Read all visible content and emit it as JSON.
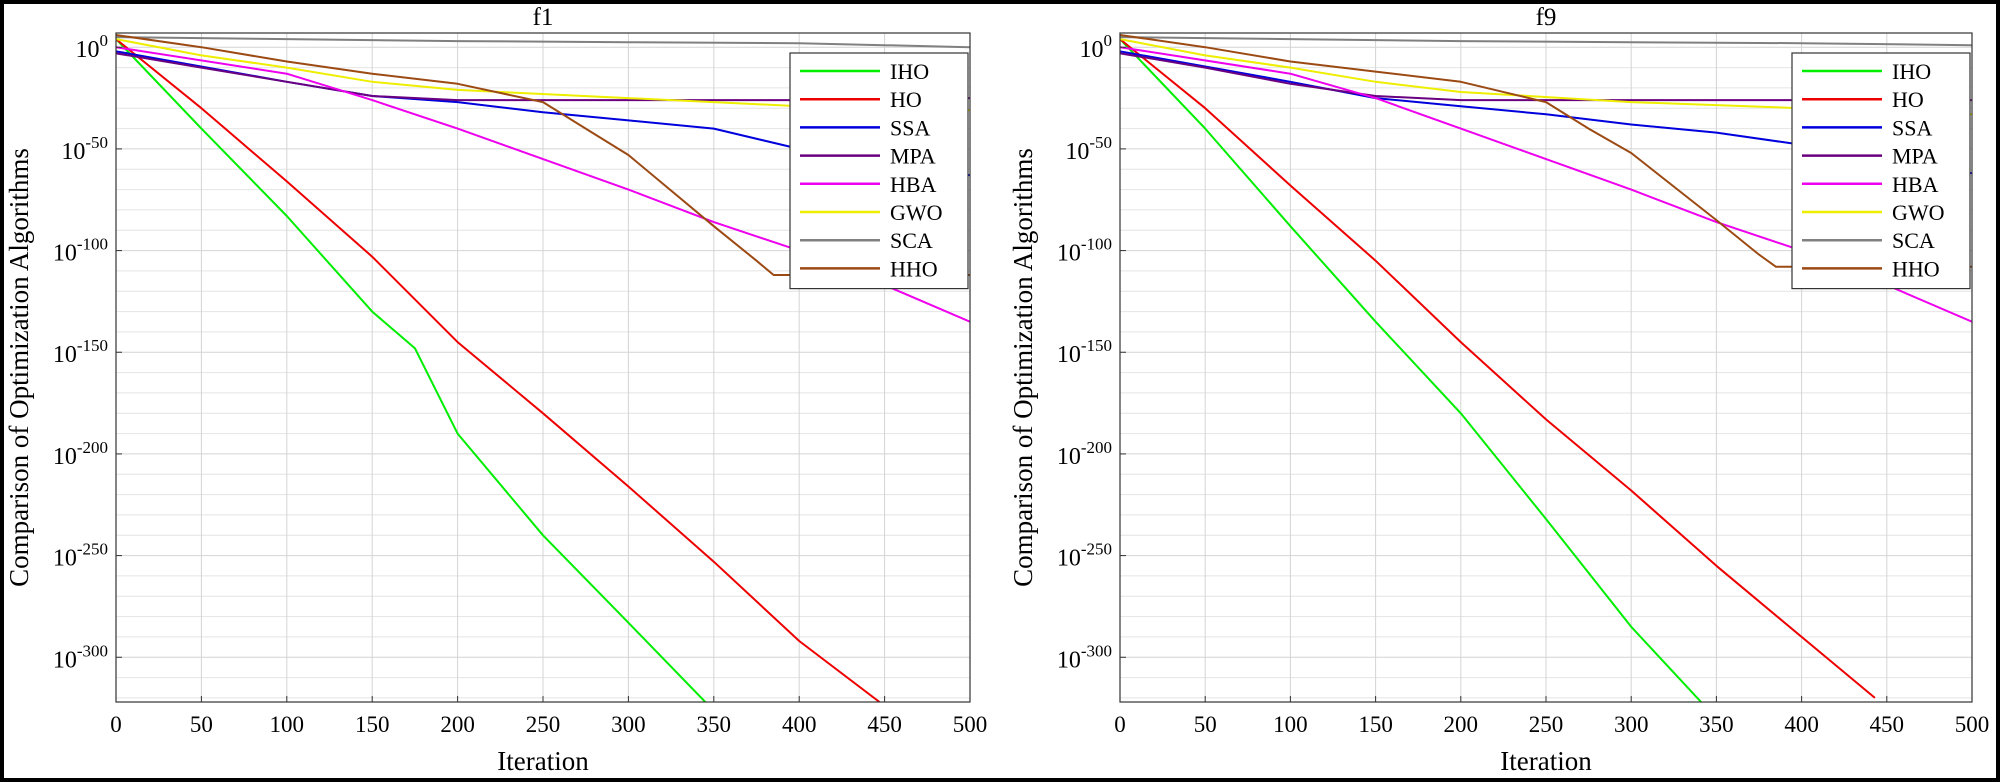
{
  "figure": {
    "background": "#000000",
    "panel_background": "#ffffff"
  },
  "chart_data": [
    {
      "type": "line",
      "title": "f1",
      "xlabel": "Iteration",
      "ylabel": "Comparison of Optimization Algorithms",
      "xscale": "linear",
      "yscale": "log",
      "xlim": [
        0,
        500
      ],
      "ylim_exponent": [
        -322,
        7
      ],
      "xticks": [
        "0",
        "50",
        "100",
        "150",
        "200",
        "250",
        "300",
        "350",
        "400",
        "450",
        "500"
      ],
      "ytick_exponents": [
        0,
        -50,
        -100,
        -150,
        -200,
        -250,
        -300
      ],
      "ytick_base": "10",
      "grid": true,
      "legend": {
        "position": "top-right"
      },
      "series": [
        {
          "name": "IHO",
          "color": "#00ee00",
          "x": [
            0,
            50,
            100,
            150,
            175,
            200,
            250,
            300,
            345
          ],
          "log10_y": [
            4,
            -40,
            -83,
            -130,
            -148,
            -190,
            -240,
            -283,
            -322
          ]
        },
        {
          "name": "HO",
          "color": "#ee0000",
          "x": [
            0,
            50,
            100,
            150,
            200,
            250,
            300,
            350,
            400,
            447
          ],
          "log10_y": [
            4,
            -30,
            -66,
            -103,
            -145,
            -180,
            -216,
            -253,
            -292,
            -322
          ]
        },
        {
          "name": "SSA",
          "color": "#0000dd",
          "x": [
            0,
            100,
            150,
            200,
            250,
            300,
            350,
            400,
            450,
            500
          ],
          "log10_y": [
            -2,
            -17,
            -24,
            -27,
            -32,
            -36,
            -40,
            -50,
            -55,
            -63
          ]
        },
        {
          "name": "MPA",
          "color": "#6a0080",
          "x": [
            0,
            50,
            100,
            150,
            200,
            300,
            400,
            500
          ],
          "log10_y": [
            -3,
            -10,
            -17,
            -24,
            -26,
            -26,
            -26,
            -25
          ]
        },
        {
          "name": "HBA",
          "color": "#ee00ee",
          "x": [
            0,
            100,
            150,
            200,
            250,
            300,
            350,
            400,
            450,
            500
          ],
          "log10_y": [
            0,
            -13,
            -26,
            -40,
            -55,
            -70,
            -86,
            -100,
            -117,
            -135
          ]
        },
        {
          "name": "GWO",
          "color": "#eeee00",
          "x": [
            0,
            50,
            100,
            150,
            200,
            300,
            400,
            500
          ],
          "log10_y": [
            4,
            -4,
            -10,
            -17,
            -21,
            -25,
            -29,
            -31
          ]
        },
        {
          "name": "SCA",
          "color": "#808080",
          "x": [
            0,
            100,
            200,
            300,
            400,
            500
          ],
          "log10_y": [
            5,
            4,
            3,
            2.5,
            2,
            0
          ]
        },
        {
          "name": "HHO",
          "color": "#9c4a14",
          "x": [
            0,
            50,
            100,
            150,
            200,
            250,
            275,
            300,
            350,
            375,
            385,
            500
          ],
          "log10_y": [
            6,
            0,
            -7,
            -13,
            -18,
            -27,
            -40,
            -53,
            -88,
            -105,
            -112,
            -112
          ]
        }
      ]
    },
    {
      "type": "line",
      "title": "f9",
      "xlabel": "Iteration",
      "ylabel": "Comparison of Optimization Algorithms",
      "xscale": "linear",
      "yscale": "log",
      "xlim": [
        0,
        500
      ],
      "ylim_exponent": [
        -322,
        7
      ],
      "xticks": [
        "0",
        "50",
        "100",
        "150",
        "200",
        "250",
        "300",
        "350",
        "400",
        "450",
        "500"
      ],
      "ytick_exponents": [
        0,
        -50,
        -100,
        -150,
        -200,
        -250,
        -300
      ],
      "ytick_base": "10",
      "grid": true,
      "legend": {
        "position": "top-right"
      },
      "series": [
        {
          "name": "IHO",
          "color": "#00ee00",
          "x": [
            0,
            50,
            100,
            150,
            200,
            250,
            300,
            341
          ],
          "log10_y": [
            4,
            -40,
            -88,
            -135,
            -180,
            -232,
            -285,
            -322
          ]
        },
        {
          "name": "HO",
          "color": "#ee0000",
          "x": [
            0,
            50,
            100,
            150,
            200,
            250,
            300,
            350,
            400,
            443
          ],
          "log10_y": [
            4,
            -30,
            -68,
            -105,
            -145,
            -183,
            -218,
            -255,
            -290,
            -320
          ]
        },
        {
          "name": "SSA",
          "color": "#0000dd",
          "x": [
            0,
            100,
            150,
            200,
            250,
            300,
            350,
            400,
            450,
            500
          ],
          "log10_y": [
            -2,
            -17,
            -25,
            -29,
            -33,
            -38,
            -42,
            -48,
            -54,
            -62
          ]
        },
        {
          "name": "MPA",
          "color": "#6a0080",
          "x": [
            0,
            50,
            100,
            150,
            200,
            300,
            400,
            500
          ],
          "log10_y": [
            -3,
            -10,
            -18,
            -24,
            -26,
            -26,
            -26,
            -26
          ]
        },
        {
          "name": "HBA",
          "color": "#ee00ee",
          "x": [
            0,
            100,
            150,
            200,
            250,
            300,
            350,
            400,
            450,
            500
          ],
          "log10_y": [
            0,
            -13,
            -25,
            -40,
            -55,
            -70,
            -86,
            -100,
            -117,
            -135
          ]
        },
        {
          "name": "GWO",
          "color": "#eeee00",
          "x": [
            0,
            50,
            100,
            150,
            200,
            300,
            400,
            500
          ],
          "log10_y": [
            4,
            -4,
            -10,
            -17,
            -22,
            -27,
            -30,
            -33
          ]
        },
        {
          "name": "SCA",
          "color": "#808080",
          "x": [
            0,
            100,
            200,
            300,
            400,
            500
          ],
          "log10_y": [
            5,
            4,
            3,
            2.5,
            2,
            1
          ]
        },
        {
          "name": "HHO",
          "color": "#9c4a14",
          "x": [
            0,
            50,
            100,
            150,
            200,
            250,
            275,
            300,
            350,
            375,
            385,
            500
          ],
          "log10_y": [
            6,
            0,
            -7,
            -12,
            -17,
            -27,
            -40,
            -52,
            -85,
            -102,
            -108,
            -108
          ]
        }
      ]
    }
  ]
}
